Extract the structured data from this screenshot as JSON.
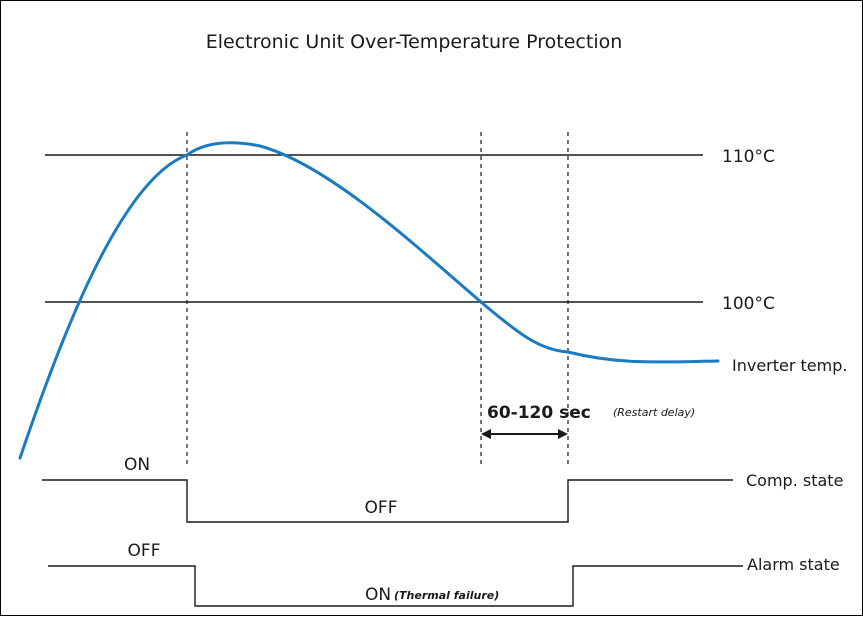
{
  "title": "Electronic Unit Over-Temperature Protection",
  "levels": {
    "high": "110°C",
    "low": "100°C"
  },
  "curve_label": "Inverter temp.",
  "delay": {
    "label": "60-120 sec",
    "note": "(Restart delay)"
  },
  "comp_state": {
    "label": "Comp. state",
    "on": "ON",
    "off": "OFF"
  },
  "alarm_state": {
    "label": "Alarm state",
    "off": "OFF",
    "on": "ON",
    "on_note": "(Thermal failure)"
  },
  "colors": {
    "curve": "#1a7cc0",
    "lines": "#1a1a1a",
    "border": "#000000"
  }
}
